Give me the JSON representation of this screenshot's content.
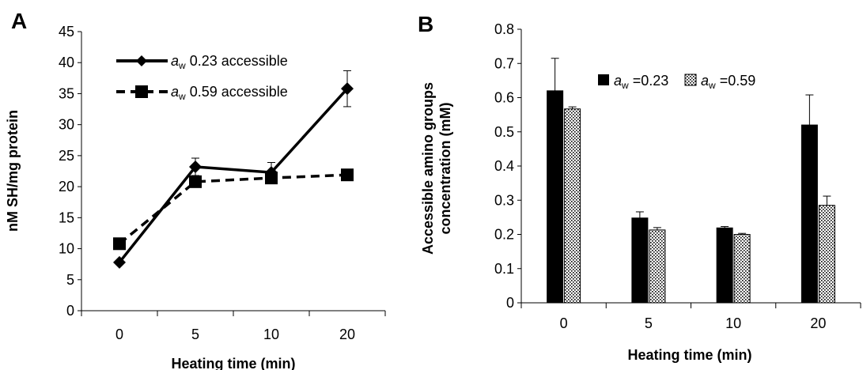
{
  "chart_data": [
    {
      "panel": "A",
      "type": "line",
      "x": [
        "0",
        "5",
        "10",
        "20"
      ],
      "xlabel": "Heating time (min)",
      "ylabel": "nM SH/mg protein",
      "ylim": [
        0,
        45
      ],
      "yticks": [
        0,
        5,
        10,
        15,
        20,
        25,
        30,
        35,
        40,
        45
      ],
      "grid": false,
      "legend_position": "top-left",
      "series": [
        {
          "name": "aw 0.23 accessible",
          "legend_a": "a",
          "legend_w": "w",
          "legend_rest": " 0.23 accessible",
          "values": [
            7.8,
            23.2,
            22.3,
            35.8
          ],
          "errors": [
            0,
            1.4,
            1.6,
            2.9
          ],
          "line": "solid",
          "marker": "diamond",
          "color": "#000000"
        },
        {
          "name": "aw 0.59 accessible",
          "legend_a": "a",
          "legend_w": "w",
          "legend_rest": " 0.59 accessible",
          "values": [
            10.8,
            20.8,
            21.4,
            21.9
          ],
          "errors": [
            0,
            0,
            0,
            0
          ],
          "line": "dashed",
          "marker": "square",
          "color": "#000000"
        }
      ]
    },
    {
      "panel": "B",
      "type": "bar",
      "categories": [
        "0",
        "5",
        "10",
        "20"
      ],
      "xlabel": "Heating time (min)",
      "ylabel_line1": "Accessible amino groups",
      "ylabel_line2": "concentration (mM)",
      "ylim": [
        0,
        0.8
      ],
      "yticks": [
        "0",
        "0.1",
        "0.2",
        "0.3",
        "0.4",
        "0.5",
        "0.6",
        "0.7",
        "0.8"
      ],
      "grid": false,
      "legend_position": "top-right",
      "series": [
        {
          "name": "aw =0.23",
          "legend_a": "a",
          "legend_w": "w",
          "legend_rest": " =0.23",
          "values": [
            0.62,
            0.248,
            0.219,
            0.52
          ],
          "errors": [
            0.095,
            0.018,
            0.004,
            0.088
          ],
          "fill": "solid",
          "color": "#000000"
        },
        {
          "name": "aw =0.59",
          "legend_a": "a",
          "legend_w": "w",
          "legend_rest": " =0.59",
          "values": [
            0.567,
            0.213,
            0.2,
            0.285
          ],
          "errors": [
            0.006,
            0.007,
            0.003,
            0.027
          ],
          "fill": "dotted",
          "color": "#000000"
        }
      ]
    }
  ]
}
